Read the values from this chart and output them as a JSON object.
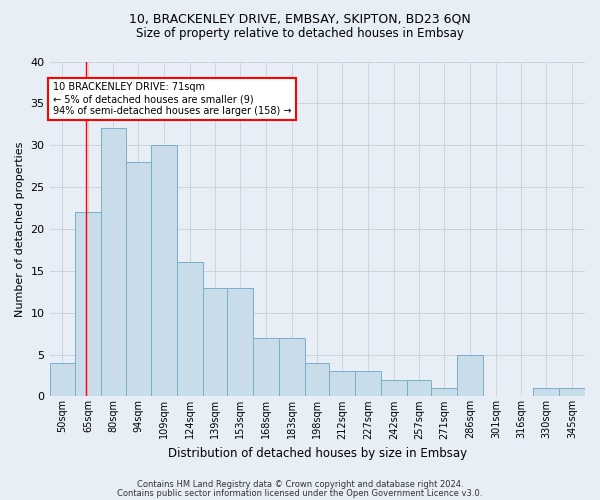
{
  "title1": "10, BRACKENLEY DRIVE, EMBSAY, SKIPTON, BD23 6QN",
  "title2": "Size of property relative to detached houses in Embsay",
  "xlabel": "Distribution of detached houses by size in Embsay",
  "ylabel": "Number of detached properties",
  "bar_labels": [
    "50sqm",
    "65sqm",
    "80sqm",
    "94sqm",
    "109sqm",
    "124sqm",
    "139sqm",
    "153sqm",
    "168sqm",
    "183sqm",
    "198sqm",
    "212sqm",
    "227sqm",
    "242sqm",
    "257sqm",
    "271sqm",
    "286sqm",
    "301sqm",
    "316sqm",
    "330sqm",
    "345sqm"
  ],
  "bar_values": [
    4,
    22,
    32,
    28,
    30,
    16,
    13,
    13,
    7,
    7,
    4,
    3,
    3,
    2,
    2,
    1,
    5,
    0,
    0,
    1,
    1
  ],
  "bar_color": "#c9dcea",
  "bar_edge_color": "#7aaec8",
  "annotation_box_text": "10 BRACKENLEY DRIVE: 71sqm\n← 5% of detached houses are smaller (9)\n94% of semi-detached houses are larger (158) →",
  "annotation_box_color": "white",
  "annotation_box_edge_color": "red",
  "vline_x": 71,
  "vline_color": "red",
  "ylim": [
    0,
    40
  ],
  "yticks": [
    0,
    5,
    10,
    15,
    20,
    25,
    30,
    35,
    40
  ],
  "footer1": "Contains HM Land Registry data © Crown copyright and database right 2024.",
  "footer2": "Contains public sector information licensed under the Open Government Licence v3.0.",
  "bg_color": "#e8eef6",
  "plot_bg_color": "#e8eef6",
  "grid_color": "#c8d0dc"
}
